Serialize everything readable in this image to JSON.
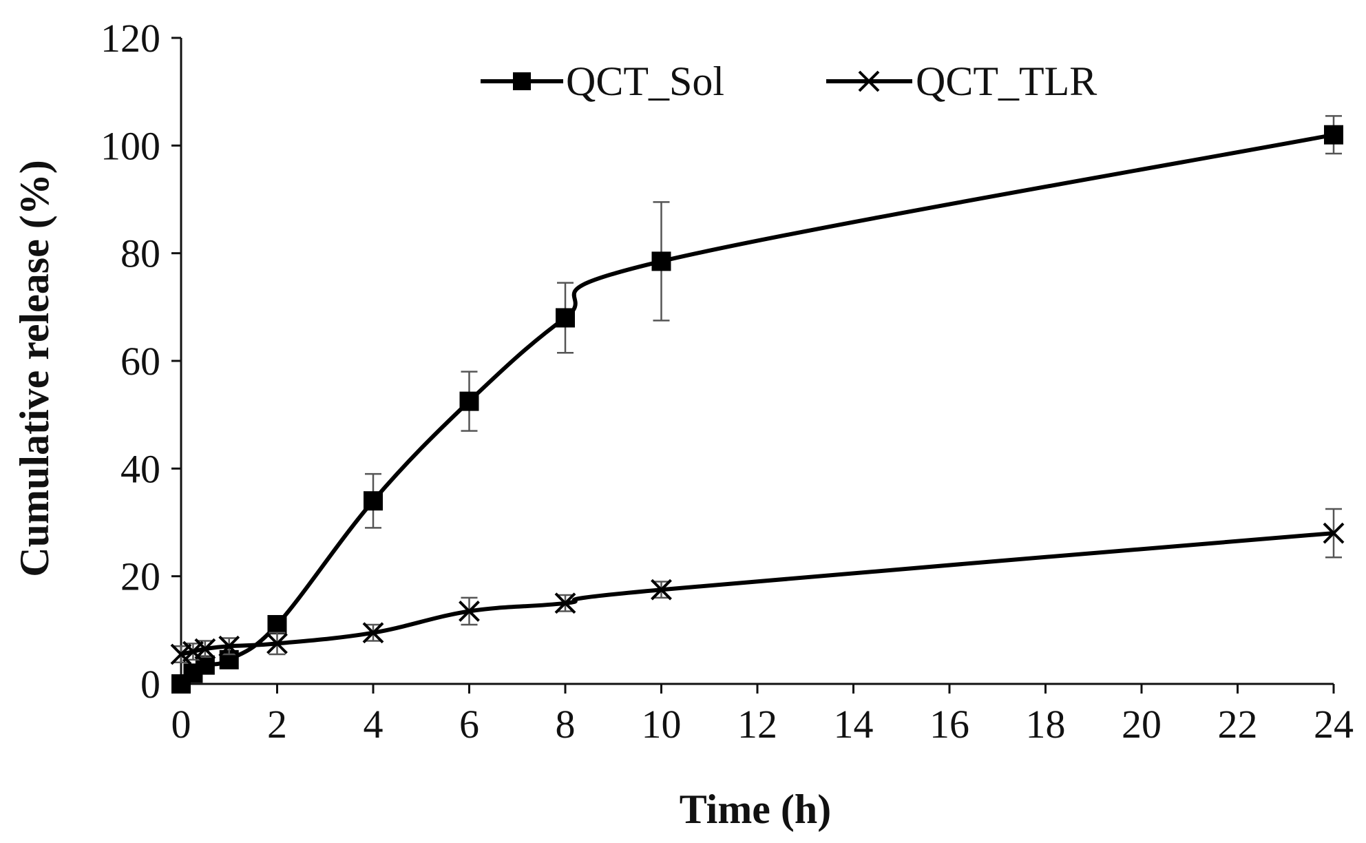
{
  "chart_data": {
    "type": "line",
    "title": "",
    "xlabel": "Time (h)",
    "ylabel": "Cumulative release (%)",
    "xlim": [
      0,
      24
    ],
    "ylim": [
      0,
      120
    ],
    "x_ticks": [
      0,
      2,
      4,
      6,
      8,
      10,
      12,
      14,
      16,
      18,
      20,
      22,
      24
    ],
    "y_ticks": [
      0,
      20,
      40,
      60,
      80,
      100,
      120
    ],
    "grid": false,
    "legend_position": "top",
    "series": [
      {
        "name": "QCT_Sol",
        "marker": "square",
        "color": "#000000",
        "x": [
          0,
          0.25,
          0.5,
          1,
          2,
          4,
          6,
          8,
          10,
          24
        ],
        "y": [
          0,
          2,
          3.5,
          4.5,
          11,
          34,
          52.5,
          68,
          78.5,
          102
        ],
        "error": [
          0,
          1,
          1,
          1.5,
          1.5,
          5,
          5.5,
          6.5,
          11,
          3.5
        ]
      },
      {
        "name": "QCT_TLR",
        "marker": "x",
        "color": "#000000",
        "x": [
          0,
          0.25,
          0.5,
          1,
          2,
          4,
          6,
          8,
          10,
          24
        ],
        "y": [
          5.5,
          6,
          6.5,
          7,
          7.5,
          9.5,
          13.5,
          15,
          17.5,
          28
        ],
        "error": [
          1.5,
          1.5,
          1.5,
          1.5,
          2,
          1.5,
          2.5,
          1.5,
          1.5,
          4.5
        ]
      }
    ]
  }
}
